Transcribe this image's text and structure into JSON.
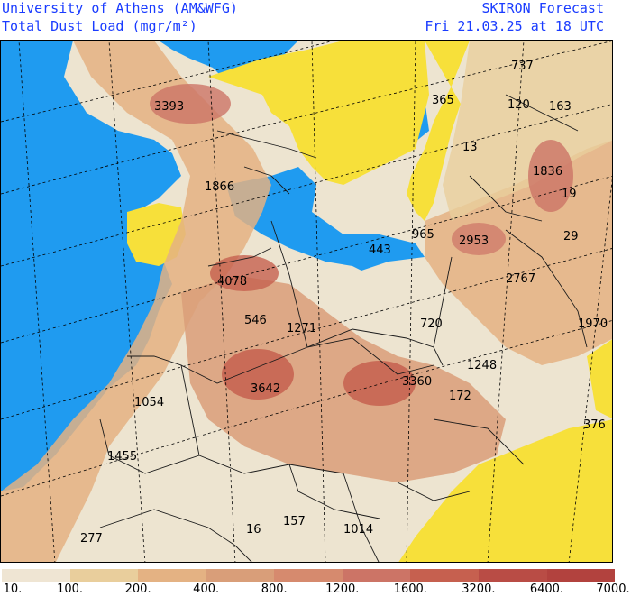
{
  "header": {
    "left_line1": "University of Athens (AM&WFG)",
    "left_line2": "Total Dust Load (mgr/m²)",
    "right_line1": "SKIRON Forecast",
    "right_line2": "Fri 21.03.25 at 18 UTC"
  },
  "map_labels": [
    "737",
    "3393",
    "365",
    "120",
    "163",
    "13",
    "1836",
    "19",
    "1866",
    "29",
    "965",
    "443",
    "2953",
    "4078",
    "2767",
    "546",
    "1271",
    "720",
    "1970",
    "1248",
    "3360",
    "3642",
    "172",
    "1054",
    "376",
    "1455",
    "16",
    "157",
    "1014",
    "277"
  ],
  "legend": {
    "colors": [
      "#efe5d3",
      "#e9ce9c",
      "#e4b283",
      "#d99e79",
      "#d68a6e",
      "#cc7466",
      "#c6604f",
      "#b94c45",
      "#b2423e"
    ],
    "ticks": [
      "10.",
      "100.",
      "200.",
      "400.",
      "800.",
      "1200.",
      "1600.",
      "3200.",
      "6400.",
      "7000."
    ]
  },
  "colors": {
    "sea": "#1f9bf0",
    "low_dust_land": "#f7e03a",
    "title_text": "#1a3cff"
  }
}
